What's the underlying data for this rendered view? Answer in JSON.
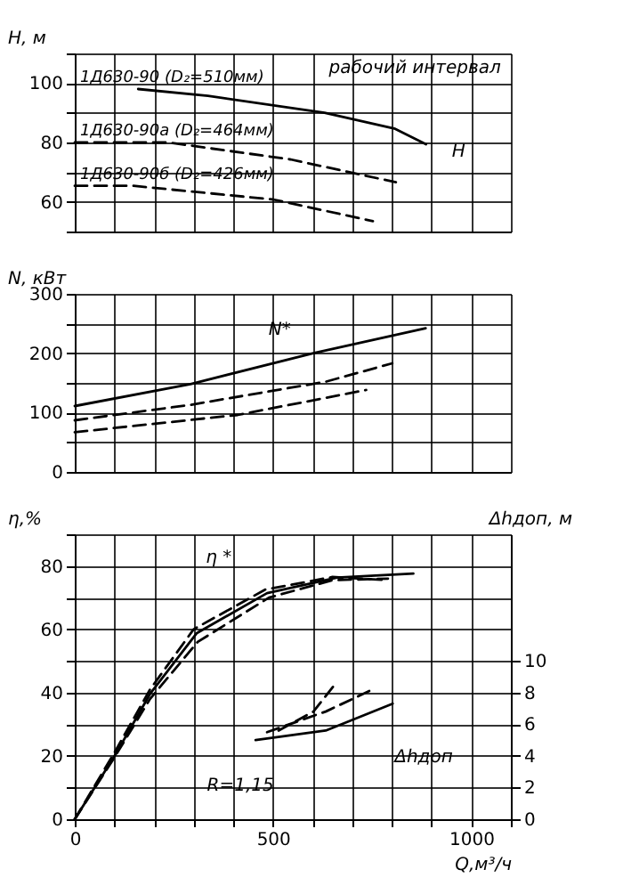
{
  "chart_data": [
    {
      "type": "line",
      "ylabel": "H, м",
      "xlim": [
        0,
        1100
      ],
      "xticks": [
        0,
        {
          "value": 100,
          "label": null
        },
        {
          "value": 200,
          "label": null
        },
        {
          "value": 300,
          "label": null
        },
        {
          "value": 400,
          "label": null
        },
        500,
        {
          "value": 600,
          "label": null
        },
        {
          "value": 700,
          "label": null
        },
        {
          "value": 800,
          "label": null
        },
        {
          "value": 900,
          "label": null
        },
        1000,
        {
          "value": 1100,
          "label": null
        }
      ],
      "ylim": [
        50,
        110
      ],
      "yticks": [
        {
          "value": 50,
          "label": null
        },
        60,
        {
          "value": 70,
          "label": null
        },
        80,
        {
          "value": 90,
          "label": null
        },
        100,
        {
          "value": 110,
          "label": null
        }
      ],
      "grid": true,
      "marker": "none",
      "tick_labels": "y",
      "series": [
        {
          "name": "1Д630-90 (D₂=510мм)",
          "color": "#000000",
          "line_style": "solid",
          "x": [
            160,
            336,
            630,
            806,
            886
          ],
          "values": [
            98,
            95.7,
            90,
            84.7,
            79.4
          ]
        },
        {
          "name": "1Д630-90а (D₂=464мм)",
          "color": "#000000",
          "line_style": "dashed",
          "x": [
            0,
            235,
            544,
            810
          ],
          "values": [
            80,
            80,
            74.3,
            66.6
          ]
        },
        {
          "name": "1Д630-90б (D₂=426мм)",
          "color": "#000000",
          "line_style": "dashed",
          "x": [
            0,
            147,
            500,
            752
          ],
          "values": [
            65.4,
            65.4,
            60.8,
            53.5
          ]
        }
      ],
      "annotations": [
        "рабочий интервал",
        "H"
      ]
    },
    {
      "type": "line",
      "ylabel": "N, кВт",
      "xlim": [
        0,
        1100
      ],
      "xticks": [
        0,
        {
          "value": 100,
          "label": null
        },
        {
          "value": 200,
          "label": null
        },
        {
          "value": 300,
          "label": null
        },
        {
          "value": 400,
          "label": null
        },
        500,
        {
          "value": 600,
          "label": null
        },
        {
          "value": 700,
          "label": null
        },
        {
          "value": 800,
          "label": null
        },
        {
          "value": 900,
          "label": null
        },
        1000,
        {
          "value": 1100,
          "label": null
        }
      ],
      "ylim": [
        0,
        300
      ],
      "yticks": [
        0,
        {
          "value": 50,
          "label": null
        },
        100,
        {
          "value": 150,
          "label": null
        },
        200,
        {
          "value": 250,
          "label": null
        },
        300
      ],
      "grid": true,
      "marker": "none",
      "tick_labels": "y",
      "series": [
        {
          "color": "#000000",
          "line_style": "solid",
          "x": [
            0,
            292,
            602,
            885
          ],
          "values": [
            111,
            148,
            200,
            242
          ]
        },
        {
          "color": "#000000",
          "line_style": "dashed",
          "x": [
            0,
            292,
            633,
            801
          ],
          "values": [
            87,
            113,
            152,
            183
          ]
        },
        {
          "color": "#000000",
          "line_style": "dashed",
          "x": [
            0,
            411,
            735
          ],
          "values": [
            67,
            96,
            138
          ]
        }
      ],
      "annotations": [
        "N*"
      ]
    },
    {
      "type": "line",
      "ylabel": "η,%",
      "y2label": "Δhдоп, м",
      "xlabel": "Q,м³/ч",
      "xlim": [
        0,
        1100
      ],
      "xticks": [
        0,
        {
          "value": 100,
          "label": null
        },
        {
          "value": 200,
          "label": null
        },
        {
          "value": 300,
          "label": null
        },
        {
          "value": 400,
          "label": null
        },
        500,
        {
          "value": 600,
          "label": null
        },
        {
          "value": 700,
          "label": null
        },
        {
          "value": 800,
          "label": null
        },
        {
          "value": 900,
          "label": null
        },
        1000,
        {
          "value": 1100,
          "label": null
        }
      ],
      "ylim": [
        0,
        90
      ],
      "yticks": [
        0,
        {
          "value": 10,
          "label": null
        },
        20,
        {
          "value": 30,
          "label": null
        },
        40,
        {
          "value": 50,
          "label": null
        },
        60,
        {
          "value": 70,
          "label": null
        },
        80,
        {
          "value": 90,
          "label": null
        }
      ],
      "y2lim": [
        0,
        18
      ],
      "y2ticks": [
        0,
        2,
        4,
        6,
        8,
        10
      ],
      "grid": true,
      "marker": "none",
      "series": [
        {
          "color": "#000000",
          "line_style": "solid",
          "x": [
            0,
            102,
            190,
            308,
            485,
            662,
            854
          ],
          "values": [
            0,
            20.3,
            39.6,
            58.8,
            71.4,
            76.3,
            77.6
          ]
        },
        {
          "color": "#000000",
          "line_style": "dashed",
          "x": [
            0,
            100,
            190,
            300,
            480,
            650,
            790
          ],
          "values": [
            0,
            21,
            41,
            60,
            72.5,
            76.5,
            75.5
          ]
        },
        {
          "color": "#000000",
          "line_style": "dashed",
          "x": [
            0,
            100,
            190,
            310,
            490,
            650,
            790
          ],
          "values": [
            0,
            19.5,
            38,
            56,
            70,
            75.5,
            76
          ]
        },
        {
          "color": "#000000",
          "line_style": "solid",
          "axis": "y2",
          "x": [
            456,
            633,
            802
          ],
          "values": [
            5.0,
            5.6,
            7.3
          ]
        },
        {
          "color": "#000000",
          "line_style": "dashed",
          "axis": "y2",
          "x": [
            485,
            633,
            743
          ],
          "values": [
            5.5,
            6.8,
            8.1
          ]
        },
        {
          "color": "#000000",
          "line_style": "dashed",
          "axis": "y2",
          "x": [
            514,
            602,
            662
          ],
          "values": [
            5.6,
            6.8,
            8.7
          ]
        }
      ],
      "annotations": [
        "η *",
        "Δhдоп",
        "R=1,15"
      ]
    }
  ]
}
